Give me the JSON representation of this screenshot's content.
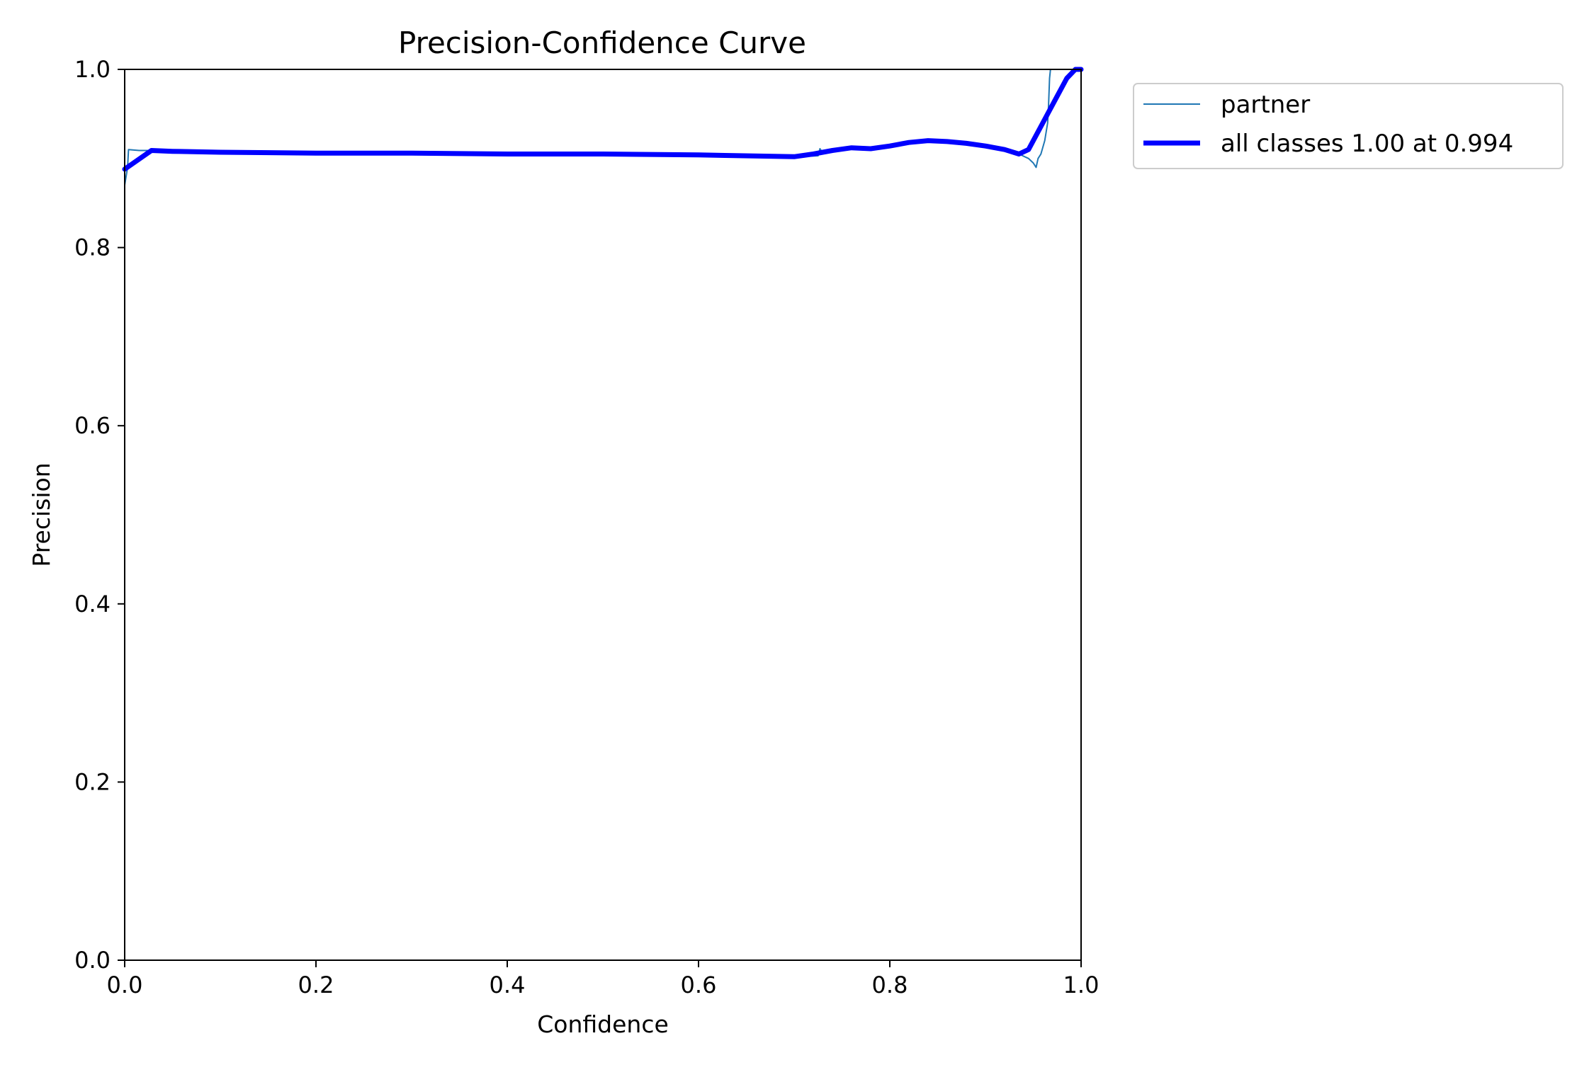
{
  "chart_data": {
    "type": "line",
    "title": "Precision-Confidence Curve",
    "xlabel": "Confidence",
    "ylabel": "Precision",
    "xlim": [
      0.0,
      1.0
    ],
    "ylim": [
      0.0,
      1.0
    ],
    "x_ticks": [
      "0.0",
      "0.2",
      "0.4",
      "0.6",
      "0.8",
      "1.0"
    ],
    "y_ticks": [
      "0.0",
      "0.2",
      "0.4",
      "0.6",
      "0.8",
      "1.0"
    ],
    "grid": false,
    "legend_position": "outside-top-right",
    "series": [
      {
        "name": "partner",
        "color": "#1f77b4",
        "style": "thin",
        "points": [
          [
            0.0,
            0.87
          ],
          [
            0.003,
            0.89
          ],
          [
            0.004,
            0.91
          ],
          [
            0.015,
            0.909
          ],
          [
            0.028,
            0.909
          ],
          [
            0.05,
            0.908
          ],
          [
            0.1,
            0.907
          ],
          [
            0.2,
            0.906
          ],
          [
            0.3,
            0.906
          ],
          [
            0.4,
            0.905
          ],
          [
            0.5,
            0.905
          ],
          [
            0.6,
            0.904
          ],
          [
            0.7,
            0.902
          ],
          [
            0.725,
            0.903
          ],
          [
            0.727,
            0.911
          ],
          [
            0.73,
            0.906
          ],
          [
            0.74,
            0.91
          ],
          [
            0.75,
            0.912
          ],
          [
            0.76,
            0.911
          ],
          [
            0.78,
            0.911
          ],
          [
            0.8,
            0.914
          ],
          [
            0.82,
            0.918
          ],
          [
            0.84,
            0.92
          ],
          [
            0.86,
            0.919
          ],
          [
            0.88,
            0.917
          ],
          [
            0.9,
            0.914
          ],
          [
            0.92,
            0.91
          ],
          [
            0.935,
            0.905
          ],
          [
            0.945,
            0.9
          ],
          [
            0.95,
            0.895
          ],
          [
            0.953,
            0.89
          ],
          [
            0.955,
            0.9
          ],
          [
            0.958,
            0.905
          ],
          [
            0.962,
            0.92
          ],
          [
            0.965,
            0.94
          ],
          [
            0.966,
            0.96
          ],
          [
            0.967,
            0.99
          ],
          [
            0.968,
            1.0
          ],
          [
            1.0,
            1.0
          ]
        ]
      },
      {
        "name": "all classes 1.00 at 0.994",
        "color": "#0000ff",
        "style": "thick",
        "points": [
          [
            0.0,
            0.888
          ],
          [
            0.028,
            0.909
          ],
          [
            0.05,
            0.908
          ],
          [
            0.1,
            0.907
          ],
          [
            0.2,
            0.906
          ],
          [
            0.3,
            0.906
          ],
          [
            0.4,
            0.905
          ],
          [
            0.5,
            0.905
          ],
          [
            0.6,
            0.904
          ],
          [
            0.7,
            0.902
          ],
          [
            0.72,
            0.905
          ],
          [
            0.74,
            0.909
          ],
          [
            0.76,
            0.912
          ],
          [
            0.78,
            0.911
          ],
          [
            0.8,
            0.914
          ],
          [
            0.82,
            0.918
          ],
          [
            0.84,
            0.92
          ],
          [
            0.86,
            0.919
          ],
          [
            0.88,
            0.917
          ],
          [
            0.9,
            0.914
          ],
          [
            0.92,
            0.91
          ],
          [
            0.935,
            0.905
          ],
          [
            0.945,
            0.91
          ],
          [
            0.96,
            0.94
          ],
          [
            0.975,
            0.97
          ],
          [
            0.985,
            0.99
          ],
          [
            0.994,
            1.0
          ],
          [
            1.0,
            1.0
          ]
        ]
      }
    ]
  }
}
